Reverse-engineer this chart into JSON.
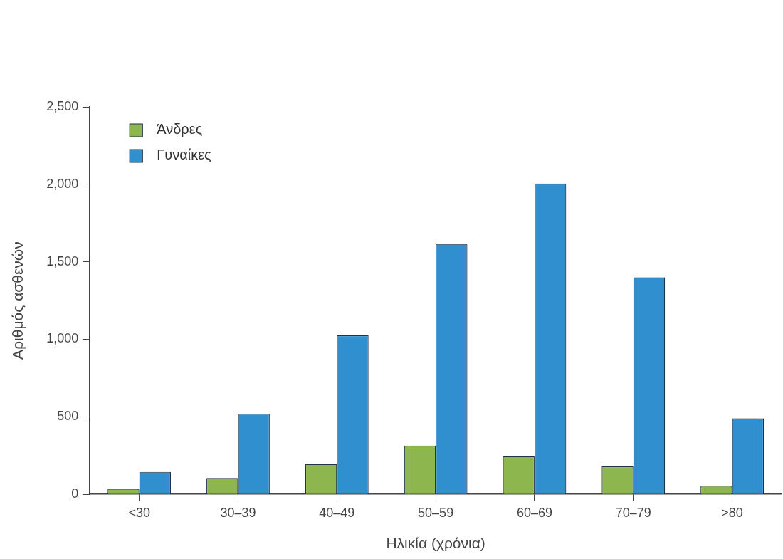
{
  "chart_data": {
    "type": "bar",
    "categories": [
      "<30",
      "30–39",
      "40–49",
      "50–59",
      "60–69",
      "70–79",
      ">80"
    ],
    "series": [
      {
        "name": "Άνδρες",
        "color": "#8db64f",
        "values": [
          35,
          105,
          195,
          315,
          245,
          180,
          55
        ]
      },
      {
        "name": "Γυναίκες",
        "color": "#2f8fcf",
        "values": [
          145,
          520,
          1025,
          1615,
          2005,
          1400,
          490
        ]
      }
    ],
    "xlabel": "Ηλικία (χρόνια)",
    "ylabel": "Αριθμός ασθενών",
    "ylim": [
      0,
      2500
    ],
    "yticks": [
      0,
      500,
      {
        "value": 1000,
        "label": "1,000"
      },
      {
        "value": 1500,
        "label": "1,500"
      },
      {
        "value": 2000,
        "label": "2,000"
      },
      {
        "value": 2500,
        "label": "2,500"
      }
    ],
    "grid": false,
    "legend": "top left"
  }
}
